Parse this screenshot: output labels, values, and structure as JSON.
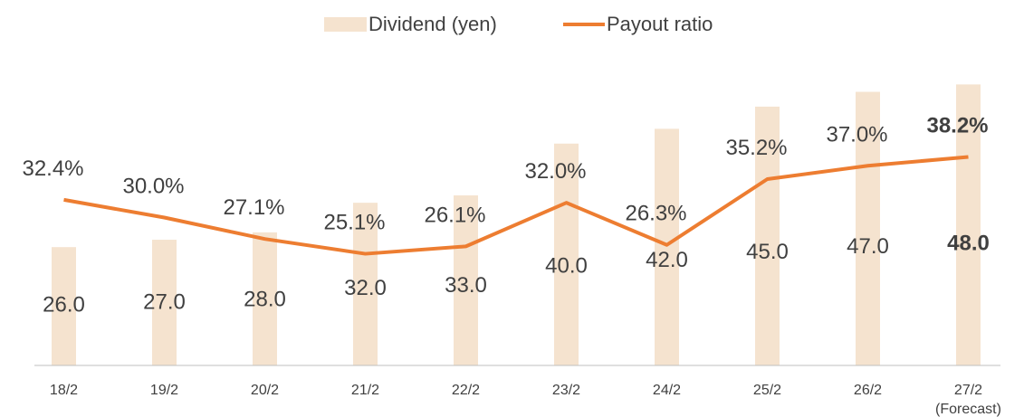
{
  "chart_data": {
    "type": "bar_line",
    "categories": [
      "18/2",
      "19/2",
      "20/2",
      "21/2",
      "22/2",
      "23/2",
      "24/2",
      "25/2",
      "26/2",
      "27/2\n(Forecast)"
    ],
    "series": [
      {
        "name": "Dividend (yen)",
        "type": "bar",
        "color": "#f5e3cf",
        "values": [
          26,
          27,
          28,
          32,
          33,
          40,
          42,
          45,
          47,
          48
        ],
        "value_labels": [
          "26.0",
          "27.0",
          "28.0",
          "32.0",
          "33.0",
          "40.0",
          "42.0",
          "45.0",
          "47.0",
          "48.0"
        ]
      },
      {
        "name": "Payout ratio",
        "type": "line",
        "axis": "y2",
        "color": "#ed7d31",
        "values": [
          32.4,
          30.0,
          27.1,
          25.1,
          26.1,
          32.0,
          26.3,
          35.2,
          37.0,
          38.2
        ],
        "value_labels": [
          "32.4%",
          "30.0%",
          "27.1%",
          "25.1%",
          "26.1%",
          "32.0%",
          "26.3%",
          "35.2%",
          "37.0%",
          "38.2%"
        ]
      }
    ],
    "ylim": [
      10,
      50
    ],
    "y2lim": [
      10,
      50
    ],
    "bold_last": true,
    "legend": "top"
  }
}
